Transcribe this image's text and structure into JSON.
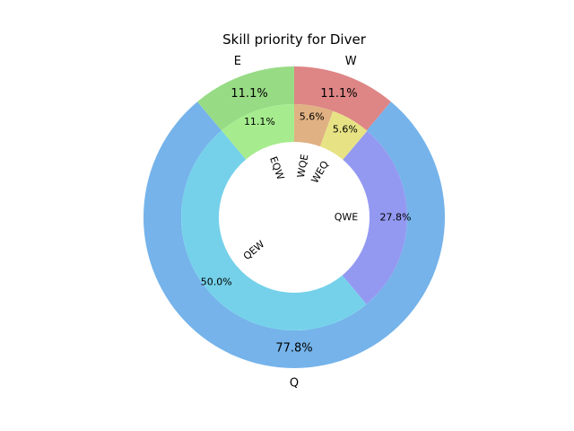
{
  "chart_data": {
    "type": "pie",
    "title": "Skill priority for Diver",
    "outer": {
      "slices": [
        {
          "label": "W",
          "value": 11.1,
          "pct_label": "11.1%",
          "color": "#de8585"
        },
        {
          "label": "Q",
          "value": 77.8,
          "pct_label": "77.8%",
          "color": "#75b3ea"
        },
        {
          "label": "E",
          "value": 11.1,
          "pct_label": "11.1%",
          "color": "#98db85"
        }
      ]
    },
    "inner": {
      "slices": [
        {
          "label": "WQE",
          "value": 5.6,
          "pct_label": "5.6%",
          "color": "#e0b183"
        },
        {
          "label": "WEQ",
          "value": 5.6,
          "pct_label": "5.6%",
          "color": "#e7e385"
        },
        {
          "label": "QWE",
          "value": 27.8,
          "pct_label": "27.8%",
          "color": "#9399f1"
        },
        {
          "label": "QEW",
          "value": 50.0,
          "pct_label": "50.0%",
          "color": "#75d1ea"
        },
        {
          "label": "EQW",
          "value": 11.1,
          "pct_label": "11.1%",
          "color": "#a6ec8e"
        }
      ]
    }
  }
}
